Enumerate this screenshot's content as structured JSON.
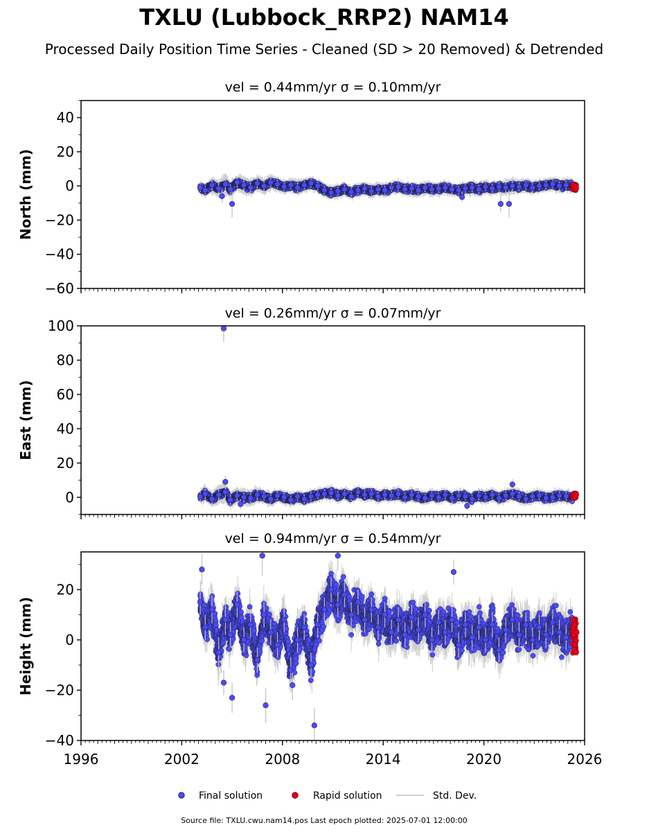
{
  "title": "TXLU (Lubbock_RRP2) NAM14",
  "subtitle": "Processed Daily Position Time Series - Cleaned (SD > 20 Removed) & Detrended",
  "legend": {
    "final": "Final solution",
    "rapid": "Rapid solution",
    "std": "Std. Dev."
  },
  "source_note": "Source file: TXLU.cwu.nam14.pos  Last epoch plotted: 2025-07-01 12:00:00",
  "colors": {
    "final": "#4b4bff",
    "rapid": "#e8001c",
    "std": "#bfbfbf",
    "edge": "#222244"
  },
  "chart_data": [
    {
      "type": "scatter",
      "title": "vel = 0.44mm/yr   σ = 0.10mm/yr",
      "ylabel": "North (mm)",
      "xlim": [
        1996,
        2026
      ],
      "ylim": [
        -60,
        50
      ],
      "yticks": [
        -60,
        -40,
        -20,
        0,
        20,
        40
      ],
      "yticklabels": [
        "−60",
        "−40",
        "−20",
        "0",
        "20",
        "40"
      ],
      "xticks": [
        1996,
        2002,
        2008,
        2014,
        2020,
        2026
      ],
      "xticklabels": [],
      "series": [
        {
          "name": "Final solution",
          "x": [
            2003.1,
            2003.4,
            2003.8,
            2004.2,
            2004.6,
            2004.9,
            2005.3,
            2005.7,
            2006.1,
            2006.5,
            2006.9,
            2007.3,
            2007.7,
            2008.1,
            2008.5,
            2008.9,
            2009.3,
            2009.7,
            2010.1,
            2010.5,
            2010.9,
            2011.3,
            2011.7,
            2012.1,
            2012.5,
            2012.9,
            2013.3,
            2013.7,
            2014.1,
            2014.5,
            2014.9,
            2015.3,
            2015.7,
            2016.1,
            2016.5,
            2016.9,
            2017.3,
            2017.7,
            2018.1,
            2018.5,
            2018.9,
            2019.3,
            2019.7,
            2020.1,
            2020.5,
            2020.9,
            2021.3,
            2021.7,
            2022.1,
            2022.5,
            2022.9,
            2023.3,
            2023.7,
            2024.1,
            2024.5,
            2024.9,
            2025.3,
            2005.0,
            2004.4,
            2021.0,
            2021.5,
            2018.7
          ],
          "y": [
            -1.0,
            -2.5,
            0.5,
            -1.5,
            1.0,
            -2.0,
            2.0,
            0.5,
            -1.0,
            1.5,
            0.0,
            2.0,
            1.0,
            -0.5,
            0.5,
            -1.0,
            0.5,
            1.5,
            0.0,
            -2.5,
            -4.0,
            -3.0,
            -2.0,
            -3.5,
            -2.5,
            -1.5,
            -3.0,
            -2.0,
            -2.5,
            -1.0,
            -0.5,
            -2.0,
            -1.5,
            -2.5,
            -1.0,
            -2.0,
            -1.5,
            -1.0,
            -2.0,
            -2.5,
            -1.5,
            -1.0,
            -2.0,
            -0.5,
            -1.5,
            -0.5,
            -1.0,
            0.0,
            -0.5,
            0.5,
            -1.0,
            0.0,
            0.5,
            1.0,
            0.0,
            0.5,
            0.0,
            -10.5,
            -6.0,
            -10.5,
            -10.5,
            -6.5
          ],
          "err": [
            2.5,
            2.5,
            3.0,
            3.5,
            4.0,
            3.0,
            3.0,
            3.5,
            3.0,
            3.0,
            3.0,
            3.0,
            2.5,
            2.5,
            2.5,
            3.0,
            2.5,
            2.5,
            2.5,
            2.5,
            2.5,
            2.5,
            2.5,
            2.5,
            2.5,
            2.5,
            2.5,
            2.5,
            2.5,
            2.5,
            2.5,
            2.5,
            2.5,
            2.5,
            2.5,
            2.5,
            2.5,
            2.5,
            2.5,
            2.5,
            2.5,
            2.5,
            2.5,
            2.5,
            2.5,
            2.5,
            3.0,
            3.0,
            2.5,
            2.5,
            2.5,
            2.5,
            2.5,
            2.5,
            2.5,
            2.5,
            2.5,
            8.0,
            4.0,
            5.0,
            8.0,
            3.0
          ]
        },
        {
          "name": "Rapid solution",
          "x": [
            2025.3,
            2025.35,
            2025.4,
            2025.45,
            2025.5
          ],
          "y": [
            0.5,
            -1.0,
            -2.0,
            0.0,
            -1.5
          ]
        }
      ]
    },
    {
      "type": "scatter",
      "title": "vel = 0.26mm/yr   σ = 0.07mm/yr",
      "ylabel": "East (mm)",
      "xlim": [
        1996,
        2026
      ],
      "ylim": [
        -10,
        100
      ],
      "yticks": [
        0,
        20,
        40,
        60,
        80,
        100
      ],
      "yticklabels": [
        "0",
        "20",
        "40",
        "60",
        "80",
        "100"
      ],
      "xticks": [
        1996,
        2002,
        2008,
        2014,
        2020,
        2026
      ],
      "xticklabels": [],
      "series": [
        {
          "name": "Final solution",
          "x": [
            2003.1,
            2003.4,
            2003.8,
            2004.2,
            2004.6,
            2004.9,
            2005.3,
            2005.7,
            2006.1,
            2006.5,
            2006.9,
            2007.3,
            2007.7,
            2008.1,
            2008.5,
            2008.9,
            2009.3,
            2009.7,
            2010.1,
            2010.5,
            2010.9,
            2011.3,
            2011.7,
            2012.1,
            2012.5,
            2012.9,
            2013.3,
            2013.7,
            2014.1,
            2014.5,
            2014.9,
            2015.3,
            2015.7,
            2016.1,
            2016.5,
            2016.9,
            2017.3,
            2017.7,
            2018.1,
            2018.5,
            2018.9,
            2019.3,
            2019.7,
            2020.1,
            2020.5,
            2020.9,
            2021.3,
            2021.7,
            2022.1,
            2022.5,
            2022.9,
            2023.3,
            2023.7,
            2024.1,
            2024.5,
            2024.9,
            2025.3,
            2004.5,
            2004.6,
            2021.7,
            2005.5,
            2019.0
          ],
          "y": [
            0.5,
            2.0,
            -1.0,
            1.5,
            3.0,
            -1.5,
            1.0,
            0.0,
            -0.5,
            1.5,
            0.5,
            -1.0,
            1.0,
            0.0,
            -1.5,
            0.5,
            -1.0,
            0.5,
            1.5,
            2.0,
            2.5,
            1.0,
            2.0,
            0.5,
            3.0,
            1.5,
            2.0,
            0.5,
            1.5,
            1.0,
            2.0,
            0.0,
            1.5,
            0.5,
            -0.5,
            1.0,
            0.0,
            1.5,
            -0.5,
            1.0,
            0.5,
            -1.0,
            1.0,
            0.0,
            1.5,
            -0.5,
            1.0,
            2.0,
            0.5,
            -1.0,
            0.5,
            1.0,
            -0.5,
            0.0,
            1.0,
            0.5,
            -0.5,
            98.5,
            9.0,
            7.5,
            -4.0,
            -5.0
          ],
          "err": [
            3.0,
            3.0,
            3.0,
            3.5,
            4.0,
            3.0,
            3.0,
            3.0,
            3.0,
            3.0,
            2.5,
            2.5,
            2.5,
            2.5,
            2.5,
            2.5,
            2.5,
            2.5,
            2.5,
            2.5,
            2.5,
            2.5,
            2.5,
            2.5,
            2.5,
            2.5,
            2.5,
            2.5,
            2.5,
            2.5,
            2.5,
            2.5,
            2.5,
            2.5,
            2.5,
            2.5,
            2.5,
            2.5,
            2.5,
            2.5,
            2.5,
            2.5,
            2.5,
            2.5,
            2.5,
            2.5,
            2.5,
            2.5,
            2.5,
            2.5,
            2.5,
            2.5,
            2.5,
            2.5,
            2.5,
            2.5,
            2.5,
            8.0,
            3.5,
            3.0,
            3.0,
            2.5
          ]
        },
        {
          "name": "Rapid solution",
          "x": [
            2025.3,
            2025.35,
            2025.4,
            2025.45,
            2025.5
          ],
          "y": [
            1.0,
            -0.5,
            2.0,
            0.0,
            1.5
          ]
        }
      ]
    },
    {
      "type": "scatter",
      "title": "vel = 0.94mm/yr   σ = 0.54mm/yr",
      "ylabel": "Height (mm)",
      "xlim": [
        1996,
        2026
      ],
      "ylim": [
        -40,
        35
      ],
      "yticks": [
        -40,
        -20,
        0,
        20
      ],
      "yticklabels": [
        "−40",
        "−20",
        "0",
        "20"
      ],
      "xticks": [
        1996,
        2002,
        2008,
        2014,
        2020,
        2026
      ],
      "xticklabels": [
        "1996",
        "2002",
        "2008",
        "2014",
        "2020",
        "2026"
      ],
      "series": [
        {
          "name": "Final solution",
          "x": [
            2003.1,
            2003.4,
            2003.8,
            2004.2,
            2004.6,
            2004.9,
            2005.3,
            2005.7,
            2006.1,
            2006.5,
            2006.9,
            2007.3,
            2007.7,
            2008.1,
            2008.5,
            2008.9,
            2009.3,
            2009.7,
            2010.1,
            2010.5,
            2010.9,
            2011.3,
            2011.7,
            2012.1,
            2012.5,
            2012.9,
            2013.3,
            2013.7,
            2014.1,
            2014.5,
            2014.9,
            2015.3,
            2015.7,
            2016.1,
            2016.5,
            2016.9,
            2017.3,
            2017.7,
            2018.1,
            2018.5,
            2018.9,
            2019.3,
            2019.7,
            2020.1,
            2020.5,
            2020.9,
            2021.3,
            2021.7,
            2022.1,
            2022.5,
            2022.9,
            2023.3,
            2023.7,
            2024.1,
            2024.5,
            2024.9,
            2025.3,
            2003.2,
            2006.8,
            2007.0,
            2009.9,
            2011.3,
            2004.5,
            2005.0,
            2008.6,
            2018.2
          ],
          "y": [
            15.0,
            5.0,
            12.0,
            -5.0,
            8.0,
            2.0,
            14.0,
            0.0,
            6.0,
            -8.0,
            10.0,
            3.0,
            -2.0,
            8.0,
            -12.0,
            0.0,
            5.0,
            -10.0,
            6.0,
            12.0,
            20.0,
            14.0,
            18.0,
            10.0,
            15.0,
            8.0,
            12.0,
            5.0,
            10.0,
            3.0,
            8.0,
            2.0,
            9.0,
            4.0,
            10.0,
            0.0,
            7.0,
            3.0,
            8.0,
            -2.0,
            6.0,
            1.0,
            5.0,
            0.0,
            6.0,
            -4.0,
            4.0,
            8.0,
            2.0,
            6.0,
            0.0,
            5.0,
            2.0,
            7.0,
            3.0,
            1.0,
            4.0,
            28.0,
            33.5,
            -26.0,
            -34.0,
            33.5,
            -17.0,
            -23.0,
            -18.0,
            27.0
          ],
          "err": [
            5.0,
            5.0,
            5.5,
            6.0,
            6.0,
            5.0,
            5.0,
            5.0,
            5.0,
            5.0,
            5.0,
            5.0,
            5.0,
            5.0,
            5.0,
            5.0,
            5.0,
            5.0,
            5.0,
            5.0,
            5.0,
            5.0,
            5.0,
            5.0,
            5.0,
            5.0,
            5.0,
            5.0,
            5.0,
            5.0,
            5.0,
            5.0,
            5.0,
            5.0,
            5.0,
            5.0,
            5.0,
            5.0,
            5.0,
            5.0,
            5.0,
            5.0,
            5.0,
            5.0,
            5.0,
            5.0,
            5.0,
            5.0,
            5.0,
            5.0,
            5.0,
            5.0,
            5.0,
            5.0,
            5.0,
            5.0,
            5.0,
            6.0,
            8.0,
            7.0,
            7.0,
            6.0,
            5.0,
            6.0,
            6.0,
            5.0
          ]
        },
        {
          "name": "Rapid solution",
          "x": [
            2025.3,
            2025.33,
            2025.36,
            2025.4,
            2025.43,
            2025.46,
            2025.5,
            2025.53
          ],
          "y": [
            8.0,
            5.0,
            2.0,
            6.0,
            -2.0,
            0.0,
            -5.0,
            3.0
          ]
        }
      ]
    }
  ]
}
